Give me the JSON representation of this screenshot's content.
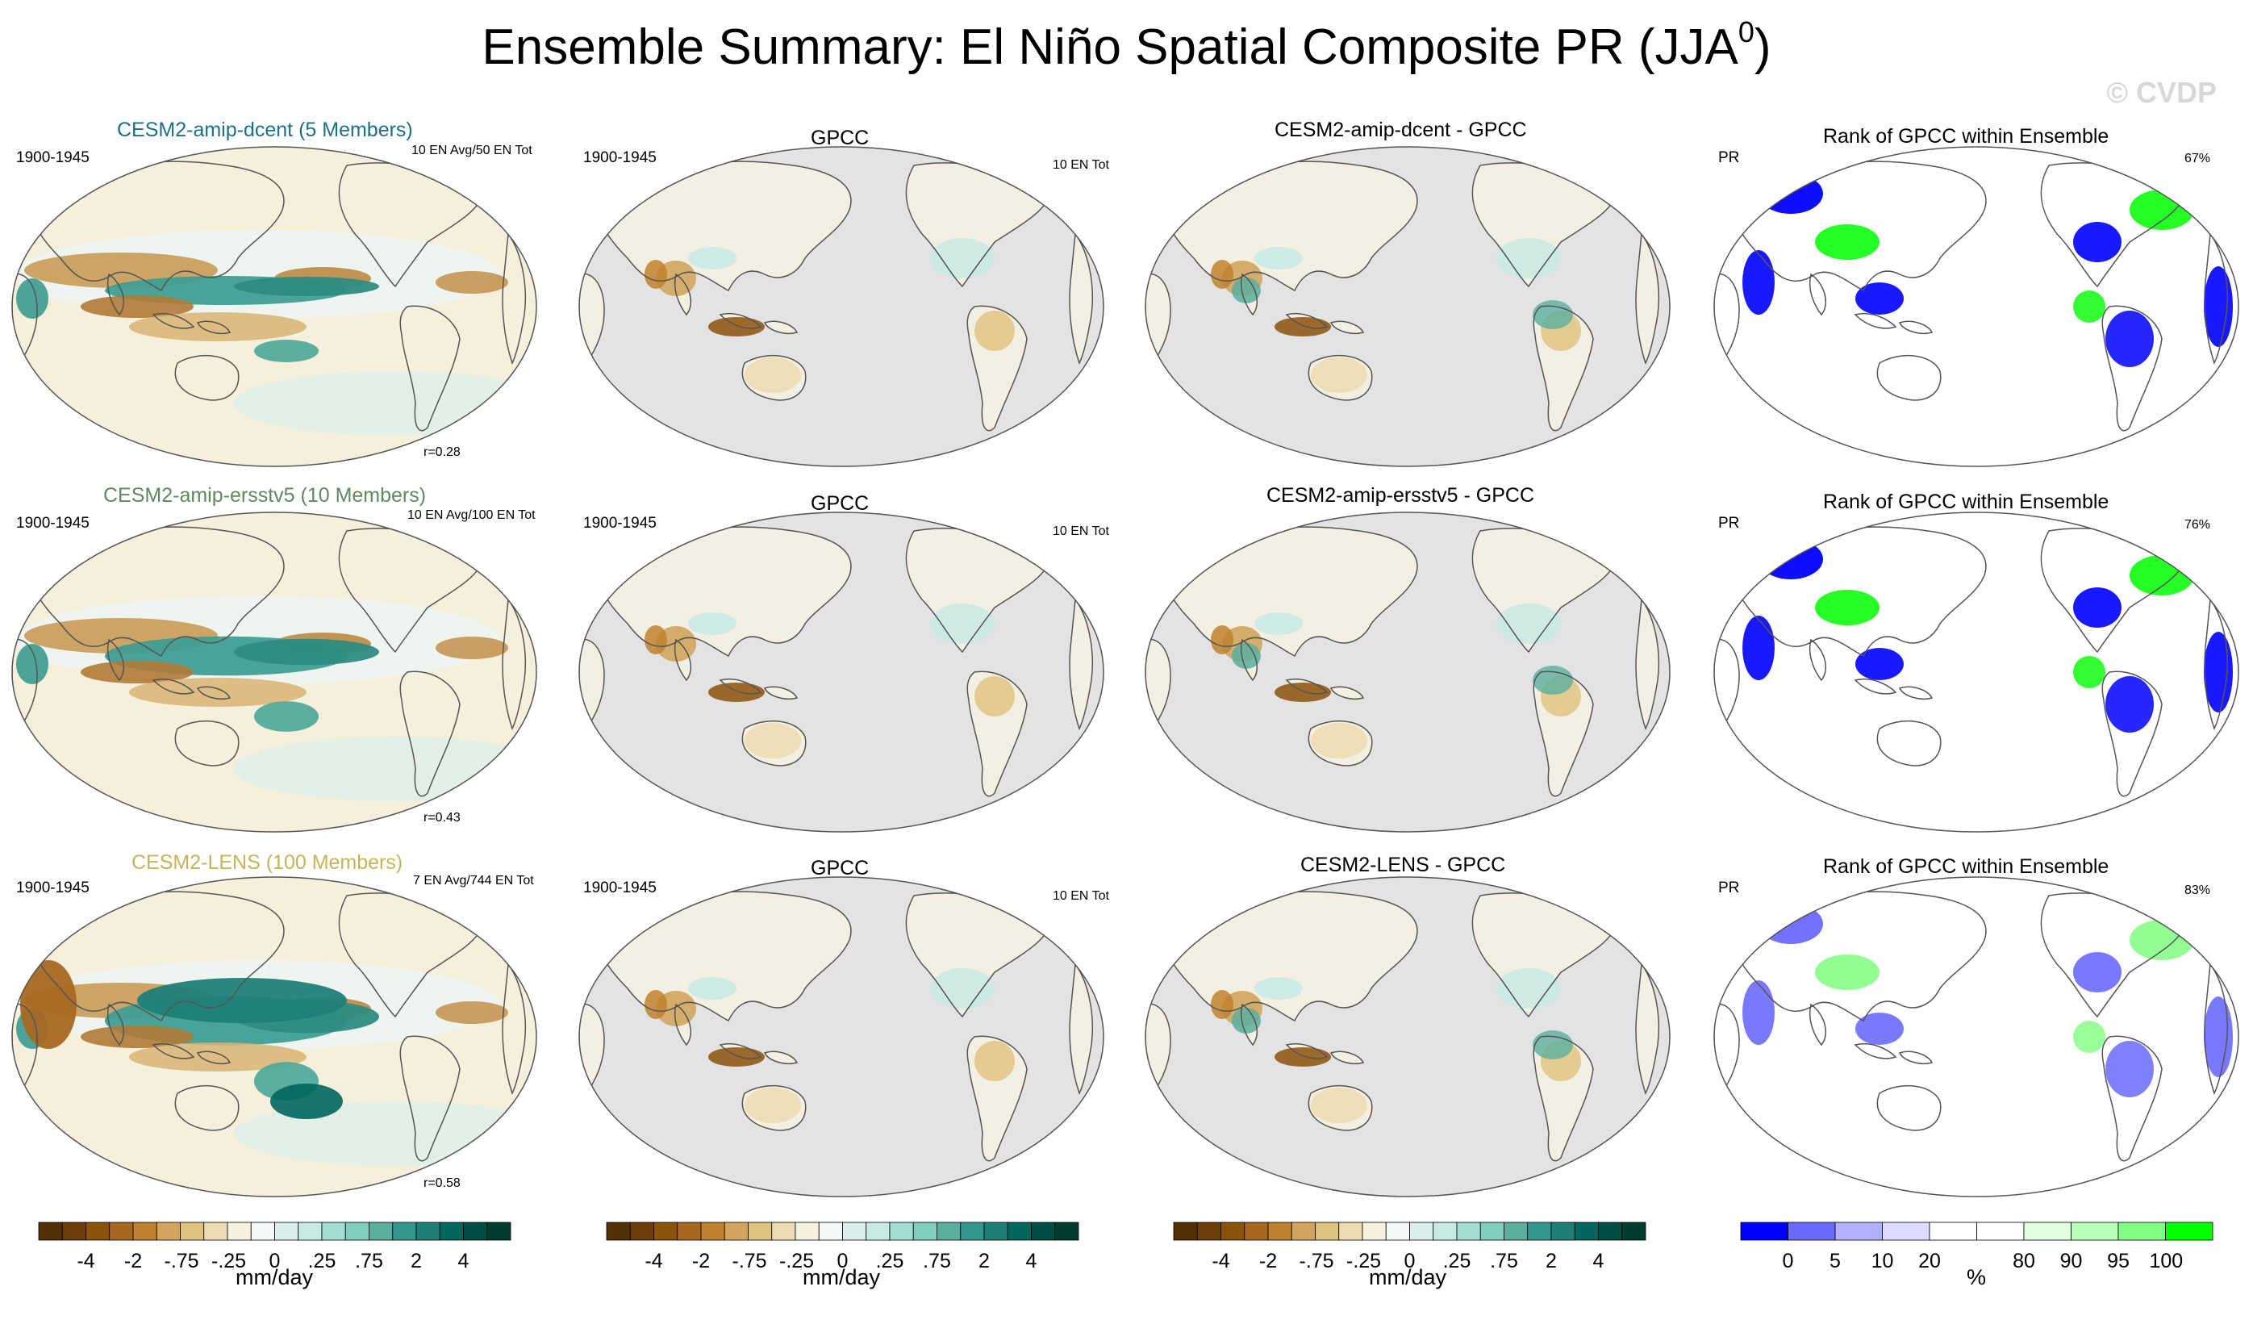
{
  "title": "Ensemble Summary: El Niño Spatial Composite PR (JJA",
  "title_sup": "0",
  "title_close": ")",
  "watermark": "© CVDP",
  "rows": [
    {
      "model_title": "CESM2-amip-dcent (5 Members)",
      "model_color": "#1e6f8a",
      "period": "1900-1945",
      "model_counts": "10 EN Avg/50 EN Tot",
      "r": "r=0.28",
      "obs_title": "GPCC",
      "obs_period": "1900-1945",
      "obs_counts": "10 EN Tot",
      "diff_title": "CESM2-amip-dcent - GPCC",
      "rank_title": "Rank of GPCC within Ensemble",
      "rank_var": "PR",
      "rank_pct": "67%"
    },
    {
      "model_title": "CESM2-amip-ersstv5 (10 Members)",
      "model_color": "#5e8a5e",
      "period": "1900-1945",
      "model_counts": "10 EN Avg/100 EN Tot",
      "r": "r=0.43",
      "obs_title": "GPCC",
      "obs_period": "1900-1945",
      "obs_counts": "10 EN Tot",
      "diff_title": "CESM2-amip-ersstv5 - GPCC",
      "rank_title": "Rank of GPCC within Ensemble",
      "rank_var": "PR",
      "rank_pct": "76%"
    },
    {
      "model_title": "CESM2-LENS (100 Members)",
      "model_color": "#c9b35a",
      "period": "1900-1945",
      "model_counts": "7 EN Avg/744 EN Tot",
      "r": "r=0.58",
      "obs_title": "GPCC",
      "obs_period": "1900-1945",
      "obs_counts": "10 EN Tot",
      "diff_title": "CESM2-LENS - GPCC",
      "rank_title": "Rank of GPCC within Ensemble",
      "rank_var": "PR",
      "rank_pct": "83%"
    }
  ],
  "colorbars": {
    "precip": {
      "colors": [
        "#543005",
        "#6e3e0a",
        "#8c510a",
        "#a86822",
        "#bf812d",
        "#d2a55e",
        "#dfc27d",
        "#ecdbb0",
        "#f6f0de",
        "#f3f7f5",
        "#daeeec",
        "#c7eae5",
        "#a3dcd3",
        "#80cdc1",
        "#5aae9f",
        "#35978f",
        "#1f7f77",
        "#01665e",
        "#014f44",
        "#003c30"
      ],
      "labels": [
        "-4",
        "-2",
        "-.75",
        "-.25",
        "0",
        ".25",
        ".75",
        "2",
        "4"
      ],
      "units": "mm/day"
    },
    "rank": {
      "colors": [
        "#0000ff",
        "#6a6aff",
        "#b0b0ff",
        "#dcdcff",
        "#ffffff",
        "#ffffff",
        "#e2ffe2",
        "#b8ffb8",
        "#80ff80",
        "#00ff00"
      ],
      "labels": [
        "0",
        "5",
        "10",
        "20",
        "80",
        "90",
        "95",
        "100"
      ],
      "units": "%"
    }
  },
  "chart_data": {
    "type": "heatmap",
    "title": "Ensemble Summary: El Niño Spatial Composite PR (JJA0)",
    "variable": "PR",
    "season": "JJA0",
    "period": "1900-1945",
    "units": "mm/day",
    "precip_colorbar_levels": [
      -4,
      -2,
      -0.75,
      -0.25,
      0,
      0.25,
      0.75,
      2,
      4
    ],
    "rank_colorbar_levels_percent": [
      0,
      5,
      10,
      20,
      80,
      90,
      95,
      100
    ],
    "panels_per_row": [
      "model ensemble mean composite",
      "GPCC observed composite",
      "model minus GPCC difference",
      "rank of GPCC within ensemble"
    ],
    "rows": [
      {
        "model": "CESM2-amip-dcent",
        "members": 5,
        "en_avg": 10,
        "en_tot": 50,
        "obs_en_tot": 10,
        "pattern_correlation": 0.28,
        "rank_percent": 67
      },
      {
        "model": "CESM2-amip-ersstv5",
        "members": 10,
        "en_avg": 10,
        "en_tot": 100,
        "obs_en_tot": 10,
        "pattern_correlation": 0.43,
        "rank_percent": 76
      },
      {
        "model": "CESM2-LENS",
        "members": 100,
        "en_avg": 7,
        "en_tot": 744,
        "obs_en_tot": 10,
        "pattern_correlation": 0.58,
        "rank_percent": 83
      }
    ]
  }
}
